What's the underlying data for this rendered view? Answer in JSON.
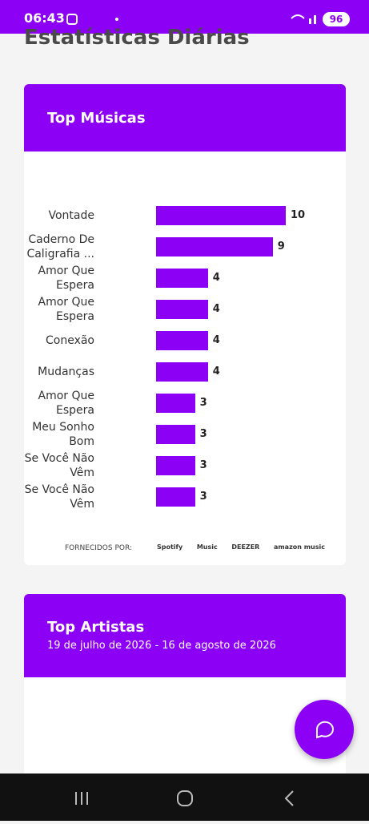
{
  "status_bar": {
    "time": "06:43",
    "battery": "96"
  },
  "page_title": "Estatísticas Diárias",
  "chart_data": {
    "type": "bar",
    "orientation": "horizontal",
    "title": "Top Músicas",
    "color": "#8c00f5",
    "categories": [
      "Vontade",
      "Caderno De Caligrafia ...",
      "Amor Que Espera",
      "Amor Que Espera",
      "Conexão",
      "Mudanças",
      "Amor Que Espera",
      "Meu Sonho Bom",
      "Se Você Não Vêm",
      "Se Você Não Vêm"
    ],
    "values": [
      10,
      9,
      4,
      4,
      4,
      4,
      3,
      3,
      3,
      3
    ]
  },
  "providers": {
    "label": "FORNECIDOS POR:",
    "logos": [
      "Spotify",
      "Music",
      "DEEZER",
      "amazon music"
    ]
  },
  "artists_card": {
    "title": "Top Artistas",
    "subtitle": "19 de julho de 2026 - 16 de agosto de 2026"
  }
}
